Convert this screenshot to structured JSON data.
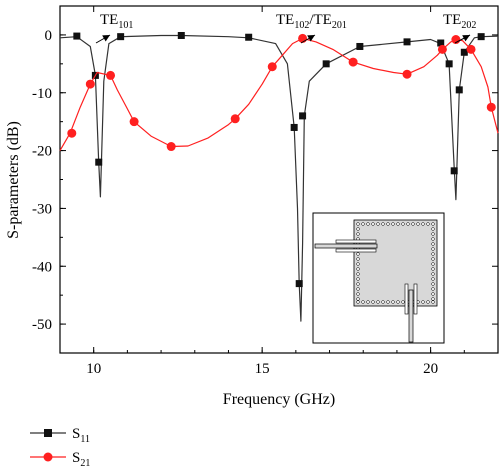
{
  "chart_data": {
    "type": "line",
    "xlabel": "Frequency (GHz)",
    "ylabel": "S-parameters (dB)",
    "xlim": [
      9,
      22
    ],
    "ylim": [
      -55,
      5
    ],
    "xticks": [
      "10",
      "15",
      "20"
    ],
    "yticks": [
      "0",
      "-10",
      "-20",
      "-30",
      "-40",
      "-50"
    ],
    "legend_position": "bottom-left, below plot",
    "annotations": [
      {
        "base": "TE",
        "sub": "101",
        "x": 10.2,
        "y": 0
      },
      {
        "base": "TE",
        "sub": "102",
        "base2": "/TE",
        "sub2": "201",
        "x": 16.2,
        "y": 0
      },
      {
        "base": "TE",
        "sub": "202",
        "x": 20.8,
        "y": 0
      }
    ],
    "series": [
      {
        "name": "S",
        "name_sub": "11",
        "color": "#333333",
        "marker": "square",
        "values": [
          [
            9.0,
            -0.5
          ],
          [
            9.5,
            -0.3
          ],
          [
            9.9,
            -2.0
          ],
          [
            10.05,
            -7.0
          ],
          [
            10.15,
            -22.0
          ],
          [
            10.2,
            -28.0
          ],
          [
            10.3,
            -8.0
          ],
          [
            10.45,
            -1.5
          ],
          [
            10.8,
            -0.3
          ],
          [
            12.0,
            -0.1
          ],
          [
            12.6,
            -0.1
          ],
          [
            14.0,
            -0.3
          ],
          [
            14.6,
            -0.5
          ],
          [
            15.4,
            -1.5
          ],
          [
            15.75,
            -5.0
          ],
          [
            15.95,
            -16.0
          ],
          [
            16.05,
            -30.0
          ],
          [
            16.1,
            -43.0
          ],
          [
            16.15,
            -49.5
          ],
          [
            16.2,
            -36.0
          ],
          [
            16.25,
            -14.0
          ],
          [
            16.4,
            -8.0
          ],
          [
            16.9,
            -5.0
          ],
          [
            17.9,
            -2.0
          ],
          [
            19.3,
            -1.2
          ],
          [
            20.0,
            -0.8
          ],
          [
            20.3,
            -1.5
          ],
          [
            20.55,
            -5.0
          ],
          [
            20.7,
            -23.0
          ],
          [
            20.75,
            -28.5
          ],
          [
            20.85,
            -9.5
          ],
          [
            21.0,
            -3.0
          ],
          [
            21.3,
            -0.5
          ],
          [
            21.5,
            -0.3
          ],
          [
            22.0,
            -0.2
          ]
        ],
        "markers": [
          [
            9.5,
            -0.2
          ],
          [
            10.05,
            -7.0
          ],
          [
            10.15,
            -22.0
          ],
          [
            10.8,
            -0.3
          ],
          [
            12.6,
            -0.1
          ],
          [
            14.6,
            -0.4
          ],
          [
            15.95,
            -16.0
          ],
          [
            16.1,
            -43.0
          ],
          [
            16.2,
            -14.0
          ],
          [
            16.9,
            -5.0
          ],
          [
            17.9,
            -2.0
          ],
          [
            19.3,
            -1.2
          ],
          [
            20.3,
            -1.4
          ],
          [
            20.55,
            -5.0
          ],
          [
            20.7,
            -23.5
          ],
          [
            20.85,
            -9.5
          ],
          [
            21.0,
            -3.0
          ],
          [
            21.5,
            -0.3
          ]
        ]
      },
      {
        "name": "S",
        "name_sub": "21",
        "color": "#ff2020",
        "marker": "circle",
        "values": [
          [
            9.0,
            -20.0
          ],
          [
            9.3,
            -17.0
          ],
          [
            9.6,
            -12.5
          ],
          [
            9.9,
            -8.5
          ],
          [
            10.1,
            -6.5
          ],
          [
            10.5,
            -7.0
          ],
          [
            10.7,
            -9.5
          ],
          [
            11.0,
            -12.8
          ],
          [
            11.2,
            -15.0
          ],
          [
            11.7,
            -17.5
          ],
          [
            12.3,
            -19.3
          ],
          [
            12.8,
            -19.2
          ],
          [
            13.4,
            -17.8
          ],
          [
            14.0,
            -15.5
          ],
          [
            14.2,
            -14.5
          ],
          [
            14.6,
            -12.0
          ],
          [
            15.0,
            -8.5
          ],
          [
            15.3,
            -5.5
          ],
          [
            15.6,
            -3.5
          ],
          [
            15.9,
            -1.5
          ],
          [
            16.2,
            -0.6
          ],
          [
            16.6,
            -1.2
          ],
          [
            17.1,
            -2.5
          ],
          [
            17.7,
            -4.7
          ],
          [
            18.3,
            -5.8
          ],
          [
            18.9,
            -6.5
          ],
          [
            19.3,
            -6.8
          ],
          [
            19.8,
            -5.5
          ],
          [
            20.2,
            -3.5
          ],
          [
            20.35,
            -2.5
          ],
          [
            20.6,
            -1.2
          ],
          [
            20.75,
            -0.8
          ],
          [
            20.95,
            -1.0
          ],
          [
            21.2,
            -2.5
          ],
          [
            21.5,
            -5.5
          ],
          [
            21.7,
            -9.0
          ],
          [
            21.8,
            -12.5
          ],
          [
            22.0,
            -17.0
          ]
        ],
        "markers": [
          [
            9.35,
            -17.0
          ],
          [
            9.9,
            -8.5
          ],
          [
            10.5,
            -7.0
          ],
          [
            11.2,
            -15.0
          ],
          [
            12.3,
            -19.3
          ],
          [
            14.2,
            -14.5
          ],
          [
            15.3,
            -5.5
          ],
          [
            16.2,
            -0.6
          ],
          [
            17.7,
            -4.7
          ],
          [
            19.3,
            -6.8
          ],
          [
            20.35,
            -2.5
          ],
          [
            20.75,
            -0.8
          ],
          [
            21.2,
            -2.5
          ],
          [
            21.8,
            -12.5
          ]
        ]
      }
    ]
  }
}
